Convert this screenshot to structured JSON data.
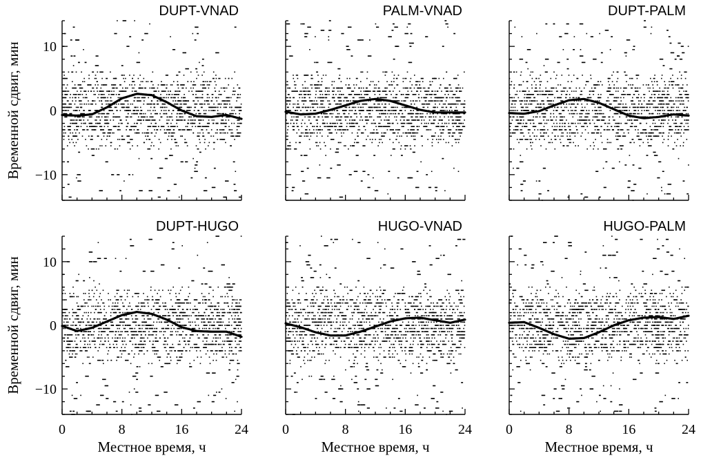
{
  "chart_data": [
    {
      "type": "scatter",
      "title": "DUPT-VNAD",
      "ylabel": "Временной сдвиг, мин",
      "xlabel": "",
      "xlim": [
        0,
        24
      ],
      "ylim": [
        -14,
        14
      ],
      "xticks": [
        "0",
        "8",
        "16",
        "24"
      ],
      "yticks": [
        "10",
        "0",
        "−10"
      ],
      "show_x_ticklabels": false,
      "show_y_ticklabels": true,
      "fit_curve": {
        "x": [
          0,
          2,
          4,
          6,
          8,
          10,
          12,
          14,
          16,
          18,
          20,
          22,
          24
        ],
        "y": [
          -0.7,
          -0.8,
          -0.6,
          0.5,
          1.9,
          2.6,
          2.4,
          1.3,
          0.0,
          -0.9,
          -1.0,
          -0.7,
          -1.3
        ]
      }
    },
    {
      "type": "scatter",
      "title": "PALM-VNAD",
      "ylabel": "",
      "xlabel": "",
      "xlim": [
        0,
        24
      ],
      "ylim": [
        -14,
        14
      ],
      "xticks": [
        "0",
        "8",
        "16",
        "24"
      ],
      "yticks": [
        "10",
        "0",
        "−10"
      ],
      "show_x_ticklabels": false,
      "show_y_ticklabels": false,
      "fit_curve": {
        "x": [
          0,
          2,
          4,
          6,
          8,
          10,
          12,
          14,
          16,
          18,
          20,
          22,
          24
        ],
        "y": [
          -0.2,
          -0.6,
          -0.5,
          0.1,
          0.8,
          1.5,
          1.8,
          1.5,
          0.8,
          0.1,
          -0.3,
          -0.3,
          -0.3
        ]
      }
    },
    {
      "type": "scatter",
      "title": "DUPT-PALM",
      "ylabel": "",
      "xlabel": "",
      "xlim": [
        0,
        24
      ],
      "ylim": [
        -14,
        14
      ],
      "xticks": [
        "0",
        "8",
        "16",
        "24"
      ],
      "yticks": [
        "10",
        "0",
        "−10"
      ],
      "show_x_ticklabels": false,
      "show_y_ticklabels": false,
      "fit_curve": {
        "x": [
          0,
          2,
          4,
          6,
          8,
          10,
          12,
          14,
          16,
          18,
          20,
          22,
          24
        ],
        "y": [
          -0.4,
          -0.5,
          -0.1,
          0.8,
          1.6,
          1.8,
          1.2,
          0.2,
          -0.8,
          -1.2,
          -1.0,
          -0.6,
          -0.8
        ]
      }
    },
    {
      "type": "scatter",
      "title": "DUPT-HUGO",
      "ylabel": "Временной сдвиг, мин",
      "xlabel": "Местное время, ч",
      "xlim": [
        0,
        24
      ],
      "ylim": [
        -14,
        14
      ],
      "xticks": [
        "0",
        "8",
        "16",
        "24"
      ],
      "yticks": [
        "10",
        "0",
        "−10"
      ],
      "show_x_ticklabels": true,
      "show_y_ticklabels": true,
      "fit_curve": {
        "x": [
          0,
          2,
          4,
          6,
          8,
          10,
          12,
          14,
          16,
          18,
          20,
          22,
          24
        ],
        "y": [
          -0.1,
          -0.9,
          -0.4,
          0.6,
          1.6,
          2.1,
          1.8,
          0.9,
          -0.3,
          -0.9,
          -1.0,
          -1.0,
          -1.8
        ]
      }
    },
    {
      "type": "scatter",
      "title": "HUGO-VNAD",
      "ylabel": "",
      "xlabel": "Местное время, ч",
      "xlim": [
        0,
        24
      ],
      "ylim": [
        -14,
        14
      ],
      "xticks": [
        "0",
        "8",
        "16",
        "24"
      ],
      "yticks": [
        "10",
        "0",
        "−10"
      ],
      "show_x_ticklabels": true,
      "show_y_ticklabels": false,
      "fit_curve": {
        "x": [
          0,
          2,
          4,
          6,
          8,
          10,
          12,
          14,
          16,
          18,
          20,
          22,
          24
        ],
        "y": [
          0.3,
          -0.3,
          -1.1,
          -1.6,
          -1.6,
          -1.0,
          -0.2,
          0.6,
          1.1,
          1.2,
          0.8,
          0.4,
          0.9
        ]
      }
    },
    {
      "type": "scatter",
      "title": "HUGO-PALM",
      "ylabel": "",
      "xlabel": "Местное время, ч",
      "xlim": [
        0,
        24
      ],
      "ylim": [
        -14,
        14
      ],
      "xticks": [
        "0",
        "8",
        "16",
        "24"
      ],
      "yticks": [
        "10",
        "0",
        "−10"
      ],
      "show_x_ticklabels": true,
      "show_y_ticklabels": false,
      "fit_curve": {
        "x": [
          0,
          2,
          4,
          6,
          8,
          10,
          12,
          14,
          16,
          18,
          20,
          22,
          24
        ],
        "y": [
          0.4,
          0.5,
          -0.4,
          -1.4,
          -2.1,
          -2.0,
          -1.1,
          0.0,
          0.8,
          1.2,
          1.3,
          1.0,
          1.5
        ]
      }
    }
  ]
}
